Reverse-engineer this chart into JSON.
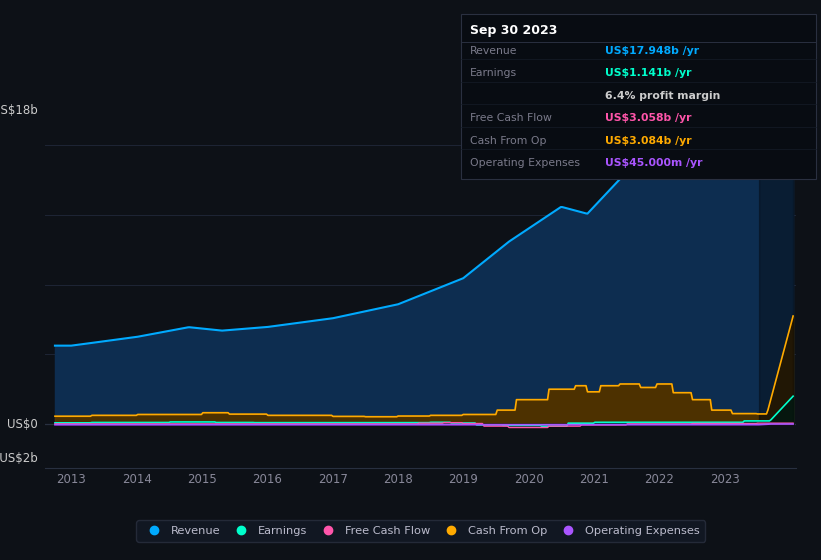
{
  "background_color": "#0d1117",
  "plot_bg_color": "#0d1117",
  "y_label_top": "US$18b",
  "y_label_zero": "US$0",
  "y_label_neg": "-US$2b",
  "ylim_min": -2.5,
  "ylim_max": 20.0,
  "xlim_min": 2012.6,
  "xlim_max": 2024.1,
  "revenue_color": "#00aaff",
  "earnings_color": "#00ffcc",
  "fcf_color": "#ff55aa",
  "cashop_color": "#ffaa00",
  "opex_color": "#aa55ff",
  "revenue_fill": "#0d2d50",
  "cashop_fill": "#3d2800",
  "earnings_fill": "#003330",
  "grid_color": "#1e2535",
  "tooltip_bg": "#080c12",
  "tooltip_border": "#2a3040",
  "tooltip_title_color": "#ffffff",
  "tooltip_label_color": "#7a7a8a",
  "tooltip_revenue_color": "#00aaff",
  "tooltip_earnings_color": "#00ffcc",
  "tooltip_fcf_color": "#ff55aa",
  "tooltip_cashop_color": "#ffaa00",
  "tooltip_opex_color": "#aa55ff",
  "legend_bg": "#131926",
  "legend_border": "#2a3040",
  "xtick_labels": [
    "2013",
    "2014",
    "2015",
    "2016",
    "2017",
    "2018",
    "2019",
    "2020",
    "2021",
    "2022",
    "2023"
  ],
  "xtick_vals": [
    2013,
    2014,
    2015,
    2016,
    2017,
    2018,
    2019,
    2020,
    2021,
    2022,
    2023
  ],
  "tooltip_rows": [
    [
      "Revenue",
      "US$17.948b /yr",
      "#00aaff"
    ],
    [
      "Earnings",
      "US$1.141b /yr",
      "#00ffcc"
    ],
    [
      "",
      "6.4% profit margin",
      "#cccccc"
    ],
    [
      "Free Cash Flow",
      "US$3.058b /yr",
      "#ff55aa"
    ],
    [
      "Cash From Op",
      "US$3.084b /yr",
      "#ffaa00"
    ],
    [
      "Operating Expenses",
      "US$45.000m /yr",
      "#aa55ff"
    ]
  ],
  "legend_items": [
    [
      "Revenue",
      "#00aaff"
    ],
    [
      "Earnings",
      "#00ffcc"
    ],
    [
      "Free Cash Flow",
      "#ff55aa"
    ],
    [
      "Cash From Op",
      "#ffaa00"
    ],
    [
      "Operating Expenses",
      "#aa55ff"
    ]
  ]
}
